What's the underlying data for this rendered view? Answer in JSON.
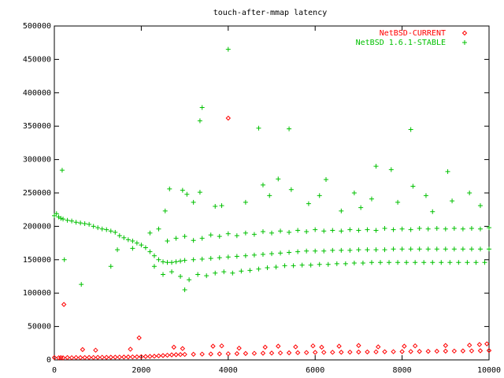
{
  "chart_data": {
    "type": "scatter",
    "title": "touch-after-mmap latency",
    "xlabel": "",
    "ylabel": "",
    "xlim": [
      0,
      10000
    ],
    "ylim": [
      0,
      500000
    ],
    "x_ticks": [
      0,
      2000,
      4000,
      6000,
      8000,
      10000
    ],
    "y_ticks": [
      0,
      50000,
      100000,
      150000,
      200000,
      250000,
      300000,
      350000,
      400000,
      450000,
      500000
    ],
    "grid": false,
    "legend_position": "top-right",
    "series": [
      {
        "name": "NetBSD-CURRENT",
        "marker": "diamond",
        "color": "#ff0000",
        "points": [
          [
            0,
            3500
          ],
          [
            100,
            3200
          ],
          [
            150,
            3400
          ],
          [
            200,
            3100
          ],
          [
            300,
            3500
          ],
          [
            400,
            3300
          ],
          [
            500,
            3600
          ],
          [
            600,
            3400
          ],
          [
            700,
            3500
          ],
          [
            800,
            3700
          ],
          [
            900,
            3600
          ],
          [
            1000,
            3800
          ],
          [
            1100,
            3900
          ],
          [
            1200,
            3800
          ],
          [
            1300,
            4000
          ],
          [
            1400,
            4100
          ],
          [
            1500,
            4200
          ],
          [
            1600,
            4300
          ],
          [
            1700,
            4400
          ],
          [
            1800,
            4500
          ],
          [
            1900,
            4600
          ],
          [
            2000,
            4800
          ],
          [
            2100,
            5000
          ],
          [
            2200,
            5200
          ],
          [
            2300,
            5500
          ],
          [
            2400,
            6000
          ],
          [
            2500,
            6500
          ],
          [
            2600,
            7000
          ],
          [
            2700,
            7500
          ],
          [
            2800,
            7800
          ],
          [
            2900,
            8000
          ],
          [
            3000,
            8200
          ],
          [
            3200,
            8400
          ],
          [
            3400,
            8600
          ],
          [
            3600,
            8800
          ],
          [
            3800,
            9000
          ],
          [
            4000,
            9200
          ],
          [
            4200,
            9400
          ],
          [
            4400,
            9600
          ],
          [
            4600,
            9800
          ],
          [
            4800,
            10000
          ],
          [
            5000,
            10200
          ],
          [
            5200,
            10400
          ],
          [
            5400,
            10600
          ],
          [
            5600,
            10800
          ],
          [
            5800,
            11000
          ],
          [
            6000,
            11200
          ],
          [
            6200,
            11300
          ],
          [
            6400,
            11400
          ],
          [
            6600,
            11500
          ],
          [
            6800,
            11600
          ],
          [
            7000,
            11800
          ],
          [
            7200,
            11900
          ],
          [
            7400,
            12000
          ],
          [
            7600,
            12200
          ],
          [
            7800,
            12300
          ],
          [
            8000,
            12400
          ],
          [
            8200,
            12500
          ],
          [
            8400,
            12700
          ],
          [
            8600,
            12800
          ],
          [
            8800,
            13000
          ],
          [
            9000,
            13100
          ],
          [
            9200,
            13200
          ],
          [
            9400,
            13400
          ],
          [
            9600,
            13500
          ],
          [
            9800,
            13700
          ],
          [
            10000,
            14000
          ],
          [
            220,
            83000
          ],
          [
            1950,
            33000
          ],
          [
            650,
            15500
          ],
          [
            950,
            14500
          ],
          [
            1750,
            16000
          ],
          [
            2750,
            19000
          ],
          [
            2950,
            17000
          ],
          [
            3650,
            20500
          ],
          [
            4000,
            362000
          ],
          [
            4250,
            17500
          ],
          [
            4850,
            19000
          ],
          [
            5150,
            20500
          ],
          [
            5550,
            19500
          ],
          [
            5950,
            21000
          ],
          [
            6150,
            19000
          ],
          [
            6550,
            20500
          ],
          [
            7000,
            21500
          ],
          [
            7450,
            19500
          ],
          [
            8050,
            20500
          ],
          [
            8300,
            21000
          ],
          [
            9000,
            21500
          ],
          [
            9550,
            22000
          ],
          [
            9780,
            23000
          ],
          [
            9950,
            24000
          ],
          [
            3850,
            21000
          ]
        ]
      },
      {
        "name": "NetBSD 1.6.1-STABLE",
        "marker": "plus",
        "color": "#00c000",
        "points": [
          [
            0,
            216000
          ],
          [
            50,
            219000
          ],
          [
            100,
            214000
          ],
          [
            150,
            212000
          ],
          [
            200,
            211000
          ],
          [
            300,
            209000
          ],
          [
            400,
            208000
          ],
          [
            500,
            206000
          ],
          [
            600,
            205000
          ],
          [
            700,
            204000
          ],
          [
            800,
            203000
          ],
          [
            900,
            200000
          ],
          [
            1000,
            198000
          ],
          [
            1100,
            196000
          ],
          [
            1200,
            195000
          ],
          [
            1300,
            193000
          ],
          [
            1400,
            191000
          ],
          [
            1500,
            186000
          ],
          [
            1600,
            183000
          ],
          [
            1700,
            180000
          ],
          [
            1800,
            178000
          ],
          [
            1900,
            175000
          ],
          [
            2000,
            172000
          ],
          [
            2100,
            168000
          ],
          [
            2200,
            162000
          ],
          [
            2300,
            156000
          ],
          [
            2400,
            150000
          ],
          [
            2500,
            147000
          ],
          [
            2600,
            146000
          ],
          [
            2700,
            146000
          ],
          [
            2800,
            147000
          ],
          [
            2900,
            148000
          ],
          [
            3000,
            149000
          ],
          [
            3200,
            150000
          ],
          [
            3400,
            151000
          ],
          [
            3600,
            152000
          ],
          [
            3800,
            153000
          ],
          [
            4000,
            154000
          ],
          [
            4200,
            155000
          ],
          [
            4400,
            156000
          ],
          [
            4600,
            157000
          ],
          [
            4800,
            158000
          ],
          [
            5000,
            159000
          ],
          [
            5200,
            160000
          ],
          [
            5400,
            161000
          ],
          [
            5600,
            162000
          ],
          [
            5800,
            163000
          ],
          [
            6000,
            163000
          ],
          [
            6200,
            163000
          ],
          [
            6400,
            164000
          ],
          [
            6600,
            164000
          ],
          [
            6800,
            164000
          ],
          [
            7000,
            165000
          ],
          [
            7200,
            165000
          ],
          [
            7400,
            165000
          ],
          [
            7600,
            165000
          ],
          [
            7800,
            166000
          ],
          [
            8000,
            166000
          ],
          [
            8200,
            166000
          ],
          [
            8400,
            166000
          ],
          [
            8600,
            166000
          ],
          [
            8800,
            166000
          ],
          [
            9000,
            166000
          ],
          [
            9200,
            166000
          ],
          [
            9400,
            166000
          ],
          [
            9600,
            166000
          ],
          [
            9800,
            166000
          ],
          [
            10000,
            166000
          ],
          [
            2500,
            128000
          ],
          [
            2700,
            132000
          ],
          [
            2900,
            125000
          ],
          [
            3100,
            120000
          ],
          [
            3300,
            128000
          ],
          [
            3500,
            126000
          ],
          [
            3700,
            130000
          ],
          [
            3900,
            132000
          ],
          [
            4100,
            130000
          ],
          [
            4300,
            133000
          ],
          [
            4500,
            134000
          ],
          [
            4700,
            136000
          ],
          [
            4900,
            138000
          ],
          [
            5100,
            139000
          ],
          [
            5300,
            141000
          ],
          [
            5500,
            141000
          ],
          [
            5700,
            142000
          ],
          [
            5900,
            142000
          ],
          [
            6100,
            143000
          ],
          [
            6300,
            143000
          ],
          [
            6500,
            144000
          ],
          [
            6700,
            144000
          ],
          [
            6900,
            145000
          ],
          [
            7100,
            145000
          ],
          [
            7300,
            146000
          ],
          [
            7500,
            146000
          ],
          [
            7700,
            146000
          ],
          [
            7900,
            146000
          ],
          [
            8100,
            146000
          ],
          [
            8300,
            146000
          ],
          [
            8500,
            146000
          ],
          [
            8700,
            146000
          ],
          [
            8900,
            146000
          ],
          [
            9100,
            146000
          ],
          [
            9300,
            146000
          ],
          [
            9500,
            146000
          ],
          [
            9700,
            146000
          ],
          [
            9900,
            146000
          ],
          [
            2600,
            178000
          ],
          [
            2800,
            182000
          ],
          [
            3000,
            185000
          ],
          [
            3200,
            179000
          ],
          [
            3400,
            182000
          ],
          [
            3600,
            187000
          ],
          [
            3800,
            185000
          ],
          [
            4000,
            189000
          ],
          [
            4200,
            186000
          ],
          [
            4400,
            190000
          ],
          [
            4600,
            188000
          ],
          [
            4800,
            192000
          ],
          [
            5000,
            190000
          ],
          [
            5200,
            193000
          ],
          [
            5400,
            191000
          ],
          [
            5600,
            194000
          ],
          [
            5800,
            192000
          ],
          [
            6000,
            195000
          ],
          [
            6200,
            193000
          ],
          [
            6400,
            194000
          ],
          [
            6600,
            193000
          ],
          [
            6800,
            195000
          ],
          [
            7000,
            194000
          ],
          [
            7200,
            195000
          ],
          [
            7400,
            194000
          ],
          [
            7600,
            197000
          ],
          [
            7800,
            195000
          ],
          [
            8000,
            196000
          ],
          [
            8200,
            195000
          ],
          [
            8400,
            197000
          ],
          [
            8600,
            196000
          ],
          [
            8800,
            197000
          ],
          [
            9000,
            196000
          ],
          [
            9200,
            197000
          ],
          [
            9400,
            196000
          ],
          [
            9600,
            197000
          ],
          [
            9800,
            196000
          ],
          [
            10000,
            198000
          ],
          [
            3000,
            105000
          ],
          [
            4000,
            465000
          ],
          [
            3400,
            378000
          ],
          [
            3350,
            358000
          ],
          [
            4700,
            347000
          ],
          [
            5400,
            346000
          ],
          [
            8200,
            345000
          ],
          [
            180,
            284000
          ],
          [
            7400,
            290000
          ],
          [
            7750,
            285000
          ],
          [
            9050,
            282000
          ],
          [
            6250,
            270000
          ],
          [
            5150,
            271000
          ],
          [
            2650,
            256000
          ],
          [
            2950,
            254000
          ],
          [
            3350,
            251000
          ],
          [
            4800,
            262000
          ],
          [
            8250,
            260000
          ],
          [
            9550,
            250000
          ],
          [
            9800,
            231000
          ],
          [
            230,
            150000
          ],
          [
            620,
            113000
          ],
          [
            1300,
            140000
          ],
          [
            1800,
            167000
          ],
          [
            2200,
            190000
          ],
          [
            2400,
            196000
          ],
          [
            2550,
            223000
          ],
          [
            3200,
            236000
          ],
          [
            3850,
            231000
          ],
          [
            4400,
            236000
          ],
          [
            5450,
            255000
          ],
          [
            6100,
            246000
          ],
          [
            6900,
            250000
          ],
          [
            7300,
            241000
          ],
          [
            8550,
            246000
          ],
          [
            9150,
            238000
          ],
          [
            1450,
            165000
          ],
          [
            2300,
            140000
          ],
          [
            3050,
            248000
          ],
          [
            3700,
            230000
          ],
          [
            4950,
            246000
          ],
          [
            5850,
            234000
          ],
          [
            6600,
            223000
          ],
          [
            7050,
            228000
          ],
          [
            7900,
            236000
          ],
          [
            8700,
            222000
          ]
        ]
      }
    ]
  }
}
